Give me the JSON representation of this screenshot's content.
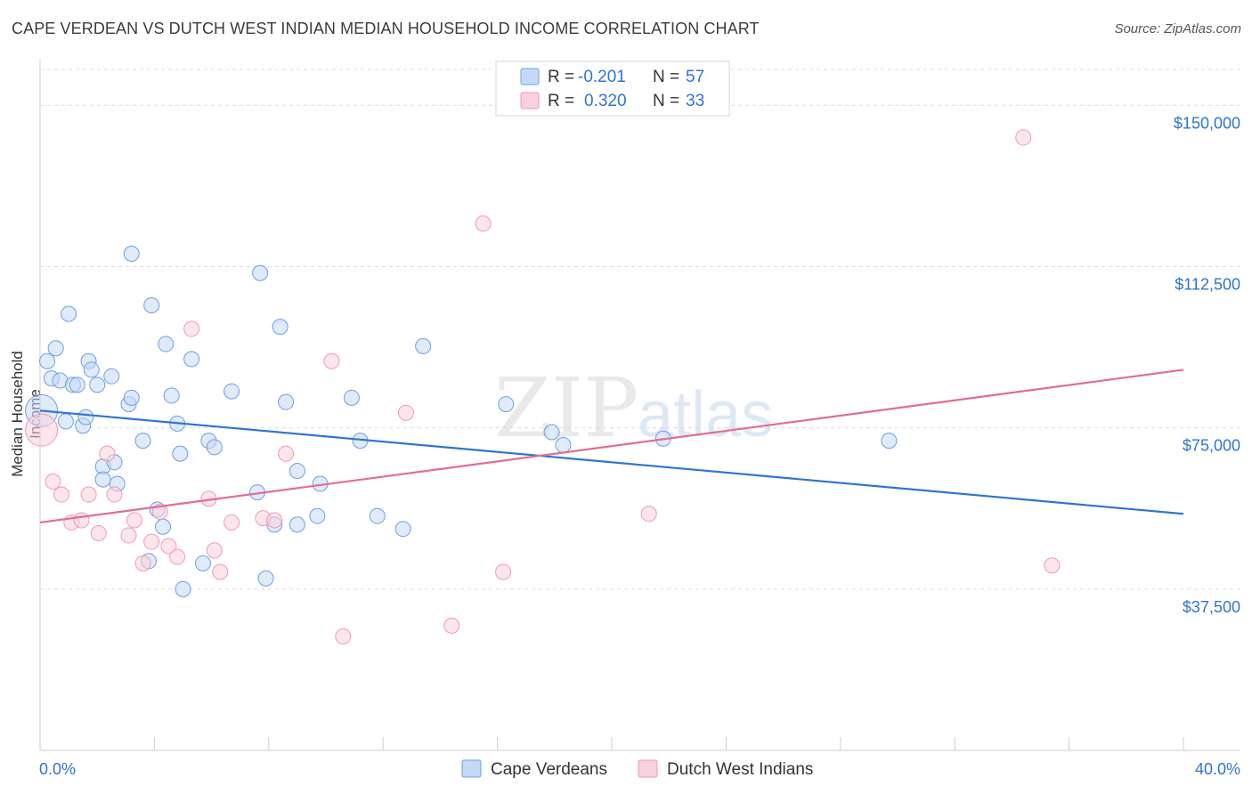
{
  "title": "CAPE VERDEAN VS DUTCH WEST INDIAN MEDIAN HOUSEHOLD INCOME CORRELATION CHART",
  "source": "Source: ZipAtlas.com",
  "watermark": {
    "zip": "ZIP",
    "atlas": "atlas"
  },
  "chart_data": {
    "type": "scatter",
    "ylabel": "Median Household Income",
    "xlim": [
      0,
      40
    ],
    "ylim": [
      0,
      160000
    ],
    "x_tick_labels": [
      {
        "value": 0,
        "label": "0.0%"
      },
      {
        "value": 40,
        "label": "40.0%"
      }
    ],
    "y_ticks": [
      {
        "value": 37500,
        "label": "$37,500"
      },
      {
        "value": 75000,
        "label": "$75,000"
      },
      {
        "value": 112500,
        "label": "$112,500"
      },
      {
        "value": 150000,
        "label": "$150,000"
      }
    ],
    "grid": true,
    "legend": {
      "placement": "top-center",
      "rows": [
        {
          "r_label": "R =",
          "r_value": "-0.201",
          "n_label": "N =",
          "n_value": "57"
        },
        {
          "r_label": "R =",
          "r_value": "0.320",
          "n_label": "N =",
          "n_value": "33"
        }
      ]
    },
    "series": [
      {
        "name": "Cape Verdeans",
        "color": "#6f9fe0",
        "fill": "#c5d9f5",
        "line_color": "#2f74d0",
        "trend": {
          "x0": 0,
          "y0": 79000,
          "x1": 40,
          "y1": 55000
        },
        "points": [
          [
            0.05,
            79000
          ],
          [
            0.25,
            90500
          ],
          [
            0.4,
            86500
          ],
          [
            0.55,
            93500
          ],
          [
            0.7,
            86000
          ],
          [
            0.9,
            76500
          ],
          [
            1.0,
            101500
          ],
          [
            1.15,
            85000
          ],
          [
            1.3,
            85000
          ],
          [
            1.5,
            75500
          ],
          [
            1.6,
            77500
          ],
          [
            1.7,
            90500
          ],
          [
            1.8,
            88500
          ],
          [
            2.0,
            85000
          ],
          [
            2.2,
            66000
          ],
          [
            2.2,
            63000
          ],
          [
            2.5,
            87000
          ],
          [
            2.6,
            67000
          ],
          [
            2.7,
            62000
          ],
          [
            3.1,
            80500
          ],
          [
            3.2,
            82000
          ],
          [
            3.2,
            115500
          ],
          [
            3.6,
            72000
          ],
          [
            3.8,
            44000
          ],
          [
            3.9,
            103500
          ],
          [
            4.1,
            56000
          ],
          [
            4.3,
            52000
          ],
          [
            4.4,
            94500
          ],
          [
            4.6,
            82500
          ],
          [
            4.8,
            76000
          ],
          [
            4.9,
            69000
          ],
          [
            5.0,
            37500
          ],
          [
            5.3,
            91000
          ],
          [
            5.7,
            43500
          ],
          [
            5.9,
            72000
          ],
          [
            6.1,
            70500
          ],
          [
            6.7,
            83500
          ],
          [
            7.6,
            60000
          ],
          [
            7.7,
            111000
          ],
          [
            7.9,
            40000
          ],
          [
            8.2,
            52500
          ],
          [
            8.4,
            98500
          ],
          [
            8.6,
            81000
          ],
          [
            9.0,
            65000
          ],
          [
            9.0,
            52500
          ],
          [
            9.7,
            54500
          ],
          [
            9.8,
            62000
          ],
          [
            10.9,
            82000
          ],
          [
            11.2,
            72000
          ],
          [
            11.8,
            54500
          ],
          [
            12.7,
            51500
          ],
          [
            13.4,
            94000
          ],
          [
            16.3,
            80500
          ],
          [
            17.9,
            74000
          ],
          [
            18.3,
            71000
          ],
          [
            21.8,
            72500
          ],
          [
            29.7,
            72000
          ]
        ]
      },
      {
        "name": "Dutch West Indians",
        "color": "#ef9ab4",
        "fill": "#f9d1dd",
        "line_color": "#e26c95",
        "trend": {
          "x0": 0,
          "y0": 53000,
          "x1": 40,
          "y1": 88500
        },
        "points": [
          [
            0.05,
            74500
          ],
          [
            0.45,
            62500
          ],
          [
            0.75,
            59500
          ],
          [
            1.1,
            53000
          ],
          [
            1.45,
            53500
          ],
          [
            1.7,
            59500
          ],
          [
            2.05,
            50500
          ],
          [
            2.35,
            69000
          ],
          [
            2.6,
            59500
          ],
          [
            3.1,
            50000
          ],
          [
            3.3,
            53500
          ],
          [
            3.6,
            43500
          ],
          [
            3.9,
            48500
          ],
          [
            4.2,
            55500
          ],
          [
            4.5,
            47500
          ],
          [
            4.8,
            45000
          ],
          [
            5.3,
            98000
          ],
          [
            5.9,
            58500
          ],
          [
            6.1,
            46500
          ],
          [
            6.3,
            41500
          ],
          [
            6.7,
            53000
          ],
          [
            7.8,
            54000
          ],
          [
            8.2,
            53500
          ],
          [
            8.6,
            69000
          ],
          [
            10.2,
            90500
          ],
          [
            10.6,
            26500
          ],
          [
            12.8,
            78500
          ],
          [
            14.4,
            29000
          ],
          [
            15.5,
            122500
          ],
          [
            16.2,
            41500
          ],
          [
            21.3,
            55000
          ],
          [
            34.4,
            142500
          ],
          [
            35.4,
            43000
          ]
        ]
      }
    ]
  }
}
